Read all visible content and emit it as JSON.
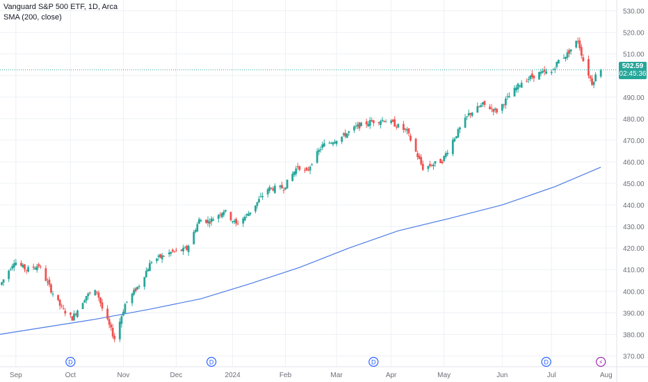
{
  "header": {
    "title": "Vanguard S&P 500 ETF, 1D, Arca",
    "indicator": "SMA (200, close)"
  },
  "price_label": {
    "price": "502.59",
    "countdown": "02:45:36"
  },
  "event_badges": [
    {
      "label": "D",
      "color": "#2962ff",
      "date": "2023-10-02"
    },
    {
      "label": "D",
      "color": "#2962ff",
      "date": "2023-12-21"
    },
    {
      "label": "D",
      "color": "#2962ff",
      "date": "2024-03-22"
    },
    {
      "label": "D",
      "color": "#2962ff",
      "date": "2024-06-28"
    },
    {
      "label": "⚡",
      "color": "#9c27b0",
      "date": "2024-07-29"
    }
  ],
  "colors": {
    "up": "#26a69a",
    "down": "#ef5350",
    "sma": "#4a7be6",
    "grid": "#eef0f4",
    "axis_text": "#6a6d78",
    "last_price_line": "#26a69a"
  },
  "chart_data": {
    "type": "candlestick",
    "title": "Vanguard S&P 500 ETF, 1D, Arca",
    "ylim": [
      365,
      535
    ],
    "xlim": [
      "2023-08-23",
      "2024-08-07"
    ],
    "y_ticks": [
      370,
      380,
      390,
      400,
      410,
      420,
      430,
      440,
      450,
      460,
      470,
      480,
      490,
      500,
      510,
      520,
      530
    ],
    "y_tick_labels": [
      "370.00",
      "380.00",
      "390.00",
      "400.00",
      "410.00",
      "420.00",
      "430.00",
      "440.00",
      "450.00",
      "460.00",
      "470.00",
      "480.00",
      "490.00",
      "500.00",
      "510.00",
      "520.00",
      "530.00"
    ],
    "x_ticks": [
      {
        "label": "Sep",
        "date": "2023-09-01"
      },
      {
        "label": "Oct",
        "date": "2023-10-02"
      },
      {
        "label": "Nov",
        "date": "2023-11-01"
      },
      {
        "label": "Dec",
        "date": "2023-12-01"
      },
      {
        "label": "2024",
        "date": "2024-01-02"
      },
      {
        "label": "Feb",
        "date": "2024-02-01"
      },
      {
        "label": "Mar",
        "date": "2024-03-01"
      },
      {
        "label": "Apr",
        "date": "2024-04-01"
      },
      {
        "label": "May",
        "date": "2024-05-01"
      },
      {
        "label": "Jun",
        "date": "2024-06-03"
      },
      {
        "label": "Jul",
        "date": "2024-07-01"
      },
      {
        "label": "Aug",
        "date": "2024-08-01"
      }
    ],
    "last_price": 502.59,
    "close_anchors": [
      [
        "2023-08-24",
        404.0
      ],
      [
        "2023-08-31",
        414.0
      ],
      [
        "2023-09-07",
        410.0
      ],
      [
        "2023-09-14",
        412.0
      ],
      [
        "2023-09-21",
        400.5
      ],
      [
        "2023-09-27",
        392.0
      ],
      [
        "2023-10-03",
        387.5
      ],
      [
        "2023-10-11",
        398.0
      ],
      [
        "2023-10-17",
        400.0
      ],
      [
        "2023-10-20",
        392.0
      ],
      [
        "2023-10-27",
        378.0
      ],
      [
        "2023-11-02",
        394.0
      ],
      [
        "2023-11-10",
        403.0
      ],
      [
        "2023-11-17",
        414.0
      ],
      [
        "2023-11-28",
        418.0
      ],
      [
        "2023-12-07",
        419.5
      ],
      [
        "2023-12-14",
        433.0
      ],
      [
        "2023-12-20",
        432.5
      ],
      [
        "2023-12-28",
        437.5
      ],
      [
        "2024-01-04",
        431.0
      ],
      [
        "2024-01-11",
        436.0
      ],
      [
        "2024-01-22",
        447.5
      ],
      [
        "2024-01-31",
        448.0
      ],
      [
        "2024-02-08",
        458.0
      ],
      [
        "2024-02-13",
        455.0
      ],
      [
        "2024-02-16",
        460.0
      ],
      [
        "2024-02-22",
        467.5
      ],
      [
        "2024-03-05",
        472.0
      ],
      [
        "2024-03-12",
        476.0
      ],
      [
        "2024-03-20",
        478.5
      ],
      [
        "2024-03-28",
        479.5
      ],
      [
        "2024-04-04",
        477.0
      ],
      [
        "2024-04-10",
        474.0
      ],
      [
        "2024-04-19",
        457.0
      ],
      [
        "2024-04-30",
        460.5
      ],
      [
        "2024-05-06",
        470.0
      ],
      [
        "2024-05-15",
        482.0
      ],
      [
        "2024-05-23",
        486.5
      ],
      [
        "2024-05-31",
        483.5
      ],
      [
        "2024-06-05",
        488.5
      ],
      [
        "2024-06-14",
        497.0
      ],
      [
        "2024-06-24",
        501.0
      ],
      [
        "2024-07-01",
        501.5
      ],
      [
        "2024-07-05",
        507.0
      ],
      [
        "2024-07-10",
        510.0
      ],
      [
        "2024-07-16",
        516.5
      ],
      [
        "2024-07-19",
        507.0
      ],
      [
        "2024-07-24",
        496.5
      ],
      [
        "2024-07-26",
        500.0
      ],
      [
        "2024-07-29",
        502.59
      ]
    ],
    "sma_200": [
      [
        "2023-08-23",
        380.0
      ],
      [
        "2023-09-15",
        383.0
      ],
      [
        "2023-10-16",
        387.0
      ],
      [
        "2023-11-15",
        391.5
      ],
      [
        "2023-12-15",
        396.5
      ],
      [
        "2024-01-12",
        403.5
      ],
      [
        "2024-02-09",
        411.0
      ],
      [
        "2024-03-08",
        420.0
      ],
      [
        "2024-04-05",
        428.0
      ],
      [
        "2024-05-03",
        433.5
      ],
      [
        "2024-06-03",
        440.0
      ],
      [
        "2024-07-03",
        448.5
      ],
      [
        "2024-07-29",
        457.5
      ]
    ]
  }
}
